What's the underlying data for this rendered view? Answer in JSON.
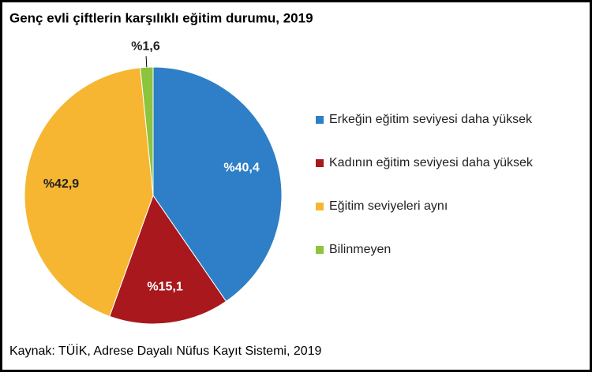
{
  "chart_data": {
    "type": "pie",
    "title": "Genç evli çiftlerin karşılıklı eğitim durumu, 2019",
    "source": "Kaynak: TÜİK, Adrese Dayalı Nüfus Kayıt Sistemi, 2019",
    "categories": [
      "Erkeğin eğitim seviyesi daha yüksek",
      "Kadının eğitim seviyesi daha yüksek",
      "Eğitim seviyeleri aynı",
      "Bilinmeyen"
    ],
    "values": [
      40.4,
      15.1,
      42.9,
      1.6
    ],
    "value_labels": [
      "%40,4",
      "%15,1",
      "%42,9",
      "%1,6"
    ],
    "colors": [
      "#2e7fc7",
      "#a8181d",
      "#f6b632",
      "#8cc43e"
    ],
    "legend": "right"
  }
}
